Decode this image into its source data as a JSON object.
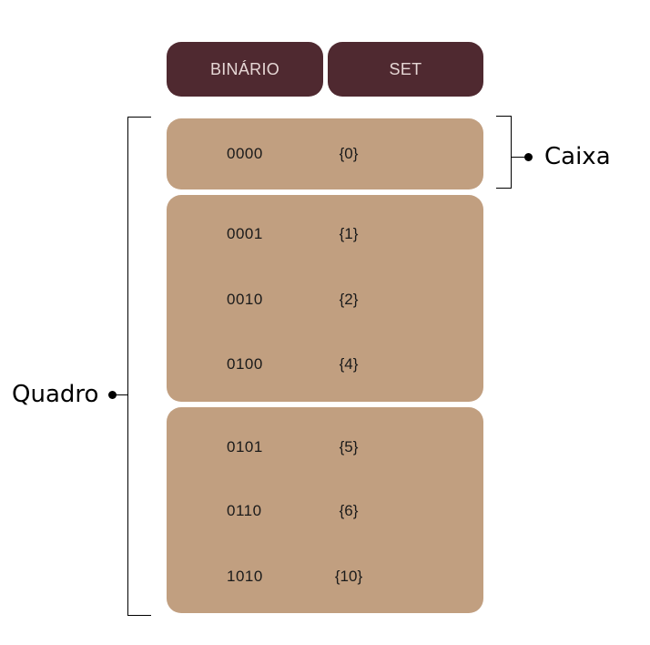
{
  "header": {
    "binary_label": "BINÁRIO",
    "set_label": "SET"
  },
  "boxes": [
    {
      "rows": [
        {
          "binary": "0000",
          "set": "{0}"
        }
      ]
    },
    {
      "rows": [
        {
          "binary": "0001",
          "set": "{1}"
        },
        {
          "binary": "0010",
          "set": "{2}"
        },
        {
          "binary": "0100",
          "set": "{4}"
        }
      ]
    },
    {
      "rows": [
        {
          "binary": "0101",
          "set": "{5}"
        },
        {
          "binary": "0110",
          "set": "{6}"
        },
        {
          "binary": "1010",
          "set": "{10}"
        }
      ]
    }
  ],
  "annotations": {
    "caixa": "Caixa",
    "quadro": "Quadro"
  },
  "colors": {
    "header_bg": "#4f2930",
    "box_bg": "#c19f80"
  }
}
